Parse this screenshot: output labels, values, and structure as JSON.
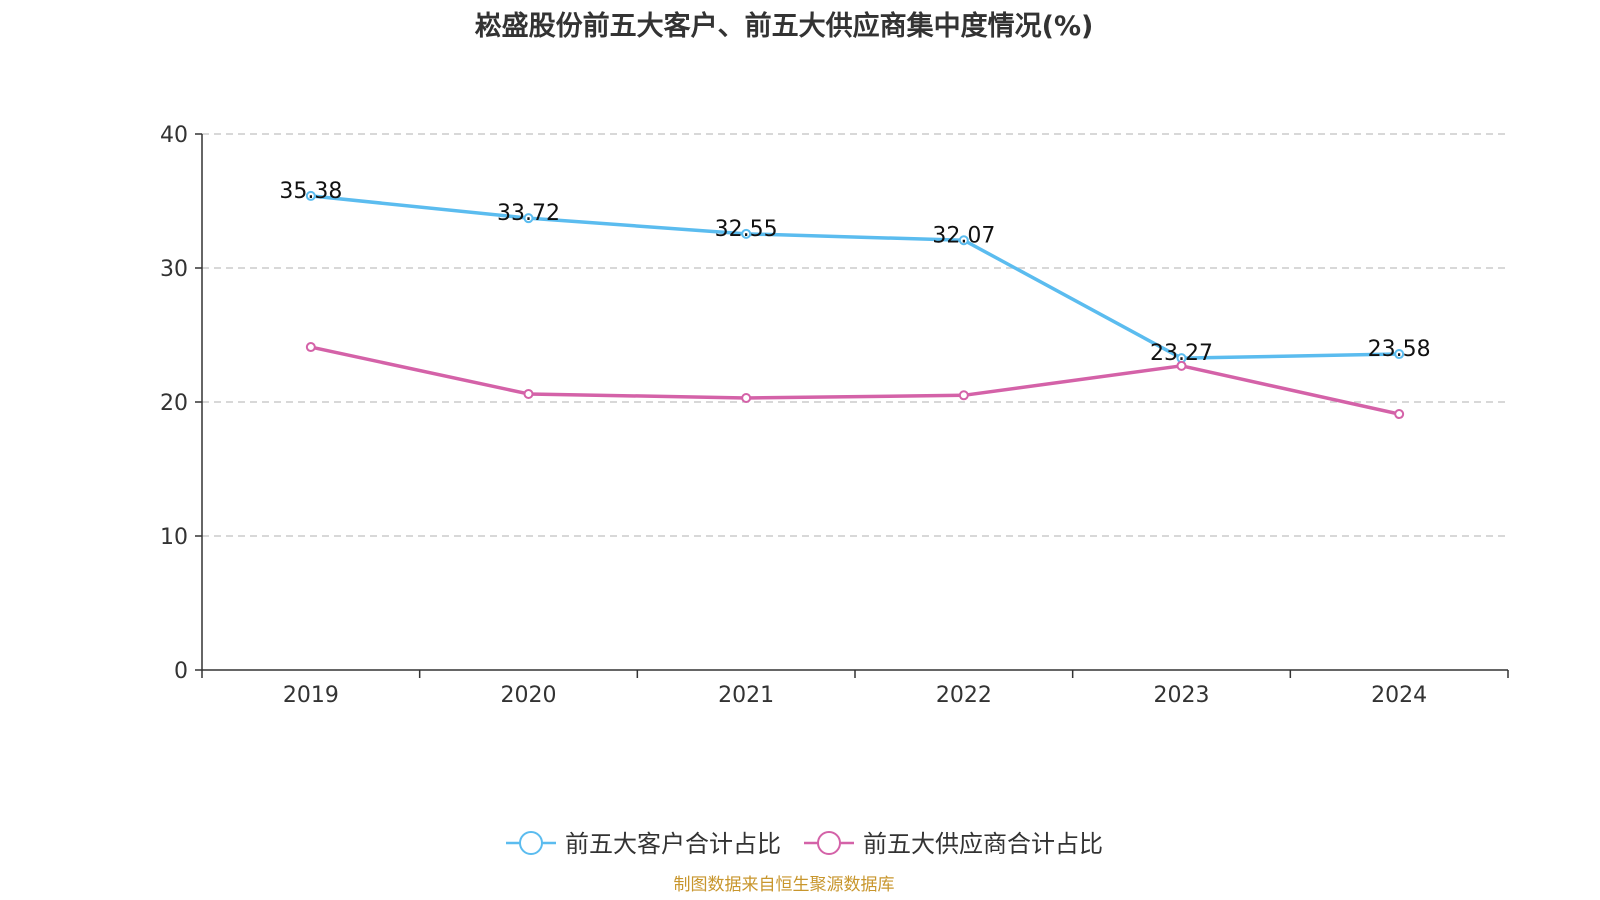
{
  "chart_data": {
    "type": "line",
    "title": "崧盛股份前五大客户、前五大供应商集中度情况(%)",
    "xlabel": "",
    "ylabel": "",
    "categories": [
      "2019",
      "2020",
      "2021",
      "2022",
      "2023",
      "2024"
    ],
    "ylim": [
      0,
      40
    ],
    "yticks": [
      0,
      10,
      20,
      30,
      40
    ],
    "grid": true,
    "legend_position": "bottom-center",
    "series": [
      {
        "name": "前五大客户合计占比",
        "color": "#5bbcef",
        "values": [
          35.38,
          33.72,
          32.55,
          32.07,
          23.27,
          23.58
        ],
        "data_labels": [
          "35.38",
          "33.72",
          "32.55",
          "32.07",
          "23.27",
          "23.58"
        ]
      },
      {
        "name": "前五大供应商合计占比",
        "color": "#d462a8",
        "values": [
          24.1,
          20.6,
          20.3,
          20.5,
          22.7,
          19.1
        ],
        "data_labels": []
      }
    ]
  },
  "source_note": "制图数据来自恒生聚源数据库"
}
